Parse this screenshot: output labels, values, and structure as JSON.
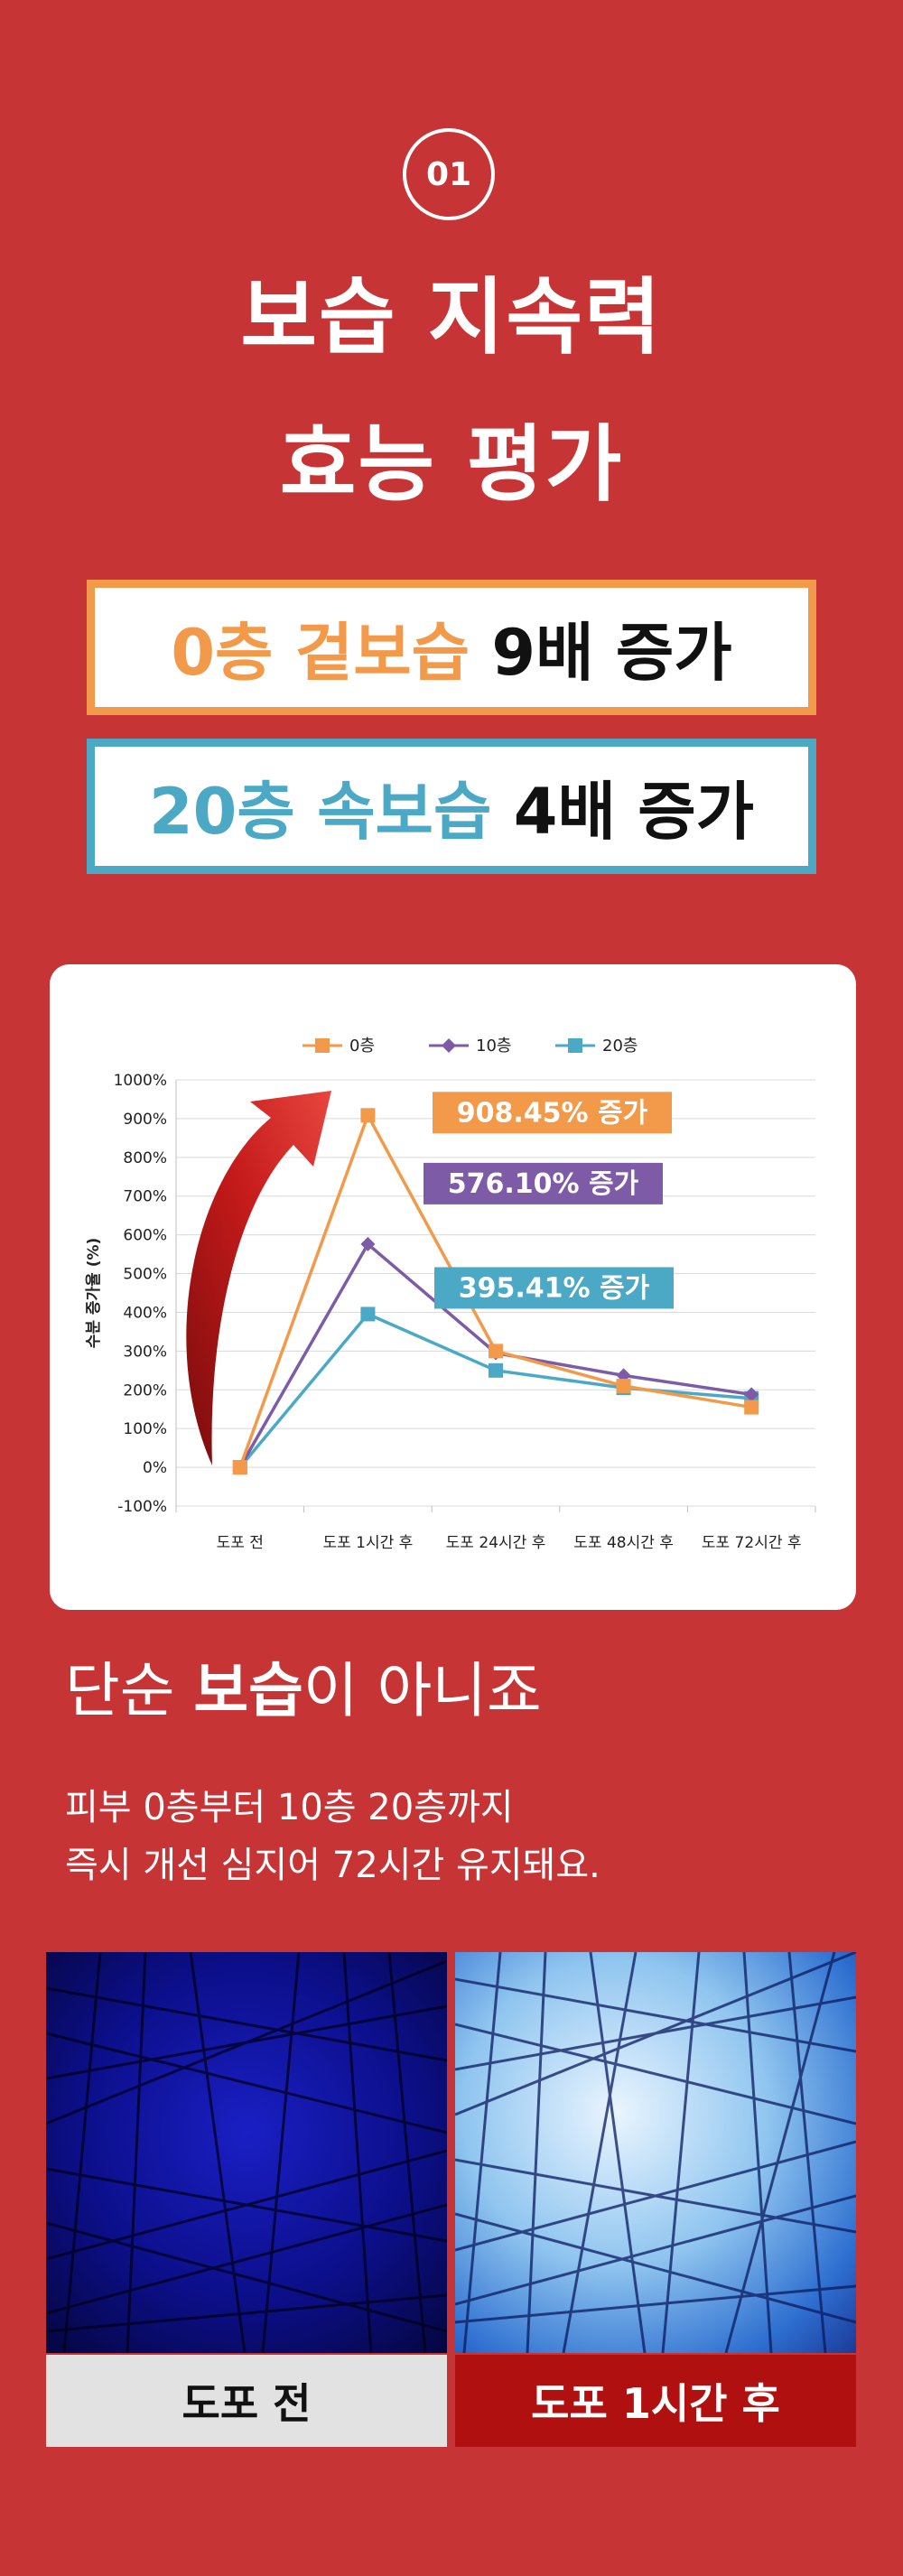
{
  "badge": "01",
  "title": {
    "line1": "보습 지속력",
    "line2": "효능 평가"
  },
  "highlight1": {
    "colored": "0층 겉보습",
    "rest": "9배 증가"
  },
  "highlight2": {
    "colored": "20층 속보습",
    "rest": "4배 증가"
  },
  "colors": {
    "background": "#c63435",
    "orange": "#f29a4a",
    "purple": "#7d5ba6",
    "teal": "#4ba9c6",
    "caption_after": "#b01010",
    "caption_before": "#e2e2e2"
  },
  "chart_data": {
    "type": "line",
    "categories": [
      "도포 전",
      "도포 1시간 후",
      "도포 24시간 후",
      "도포 48시간 후",
      "도포 72시간 후"
    ],
    "series": [
      {
        "name": "0층",
        "values": [
          0,
          908.45,
          300,
          210,
          155
        ],
        "color": "#f29a4a",
        "marker": "square"
      },
      {
        "name": "10층",
        "values": [
          0,
          576.1,
          295,
          237,
          188
        ],
        "color": "#7d5ba6",
        "marker": "diamond"
      },
      {
        "name": "20층",
        "values": [
          0,
          395.41,
          250,
          205,
          178
        ],
        "color": "#4ba9c6",
        "marker": "square"
      }
    ],
    "ylabel": "수분 증가율 (%)",
    "ylim": [
      -100,
      1000
    ],
    "yticks": [
      1000,
      900,
      800,
      700,
      600,
      500,
      400,
      300,
      200,
      100,
      0,
      -100
    ],
    "ytick_labels": [
      "1000%",
      "900%",
      "800%",
      "700%",
      "600%",
      "500%",
      "400%",
      "300%",
      "200%",
      "100%",
      "0%",
      "-100%"
    ],
    "grid": true,
    "legend": "top",
    "annotations": [
      "908.45% 증가",
      "576.10% 증가",
      "395.41% 증가"
    ]
  },
  "heading": {
    "pre": "단순 ",
    "bold": "보습",
    "post": "이 아니죠"
  },
  "desc": {
    "line1": "피부 0층부터 10층 20층까지",
    "line2": "즉시 개선 심지어 72시간 유지돼요."
  },
  "captions": {
    "before": "도포 전",
    "after": "도포 1시간 후"
  }
}
